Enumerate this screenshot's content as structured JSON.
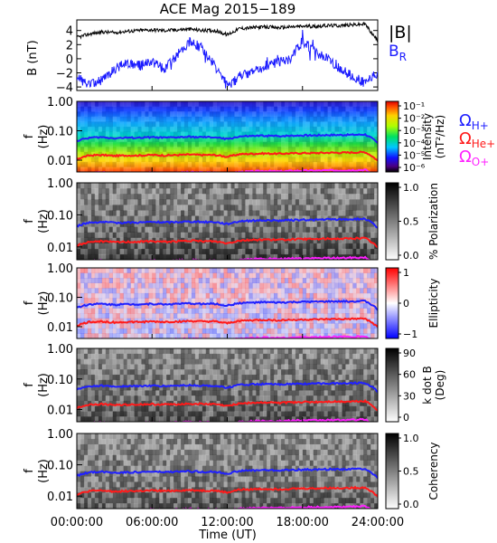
{
  "title": "ACE Mag 2015−189",
  "x_axis": {
    "label": "Time (UT)",
    "ticks": [
      "00:00:00",
      "06:00:00",
      "12:00:00",
      "18:00:00",
      "24:00:00"
    ],
    "range_hours": [
      0,
      24
    ]
  },
  "colors": {
    "B_mag": "#000000",
    "B_R": "#1c1cff",
    "H_plus": "#2020ff",
    "He_plus": "#ff1a1a",
    "O_plus": "#ff22ff"
  },
  "legend": {
    "B_mag": "|B|",
    "B_R_main": "B",
    "B_R_sub": "R",
    "omega": "Ω",
    "H_sub": "H+",
    "He_sub": "He+",
    "O_sub": "O+"
  },
  "freq_axis": {
    "label_main": "f",
    "label_unit": "(Hz)",
    "ticks": [
      "1.00",
      "0.10",
      "0.01"
    ],
    "range_log10": [
      -2.4,
      0
    ]
  },
  "panels": [
    {
      "id": "intensity",
      "colorbar": "rainbow",
      "label_lines": [
        "Intensity",
        "(nT²/Hz)"
      ],
      "ticks": [
        "10⁻¹",
        "10⁻²",
        "10⁻³",
        "10⁻⁴",
        "10⁻⁵",
        "10⁻⁶"
      ]
    },
    {
      "id": "polarization",
      "colorbar": "gray",
      "label_lines": [
        "% Polarization"
      ],
      "ticks": [
        "1.0",
        "0.5",
        "0.0"
      ]
    },
    {
      "id": "ellipticity",
      "colorbar": "redblue",
      "label_lines": [
        "Ellipticity"
      ],
      "ticks": [
        "1",
        "0",
        "−1"
      ]
    },
    {
      "id": "kdotb",
      "colorbar": "gray",
      "label_lines": [
        "k dot B",
        "(Deg)"
      ],
      "ticks": [
        "90",
        "60",
        "30",
        "0"
      ]
    },
    {
      "id": "coherency",
      "colorbar": "gray",
      "label_lines": [
        "Coherency"
      ],
      "ticks": [
        "1.0",
        "0.5",
        "0.0"
      ]
    }
  ],
  "chart_data": [
    {
      "type": "line",
      "title": "ACE Mag 2015−189",
      "xlabel": "Time (UT)",
      "ylabel": "B (nT)",
      "yticks": [
        "4",
        "2",
        "0",
        "−2",
        "−4"
      ],
      "ylim": [
        -4.5,
        5.5
      ],
      "x": [
        0,
        1,
        2,
        3,
        4,
        5,
        6,
        7,
        8,
        9,
        10,
        11,
        12,
        13,
        14,
        15,
        16,
        17,
        18,
        19,
        20,
        21,
        22,
        23,
        24
      ],
      "series": [
        {
          "name": "|B|",
          "values": [
            3.0,
            3.5,
            3.8,
            3.7,
            3.9,
            4.0,
            4.1,
            4.0,
            4.1,
            4.2,
            4.0,
            4.0,
            3.4,
            4.3,
            4.4,
            4.5,
            4.4,
            4.5,
            4.6,
            4.6,
            4.7,
            4.7,
            4.8,
            4.9,
            2.5
          ]
        },
        {
          "name": "B_R",
          "values": [
            -2.5,
            -3.8,
            -3.0,
            -1.5,
            -0.5,
            -1.0,
            -0.5,
            -1.5,
            0.5,
            2.5,
            1.5,
            -1.0,
            -4.0,
            -2.5,
            -2.0,
            -1.0,
            -0.5,
            0.0,
            2.5,
            1.0,
            0.0,
            -1.5,
            -2.5,
            -3.5,
            -2.0
          ]
        }
      ]
    },
    {
      "type": "line",
      "xlabel": "Time (UT)",
      "ylabel": "f (Hz)",
      "yscale": "log",
      "ylim": [
        0.004,
        1.0
      ],
      "x": [
        0,
        1,
        2,
        3,
        4,
        5,
        6,
        7,
        8,
        9,
        10,
        11,
        12,
        13,
        14,
        15,
        16,
        17,
        18,
        19,
        20,
        21,
        22,
        23,
        24
      ],
      "series": [
        {
          "name": "H+",
          "values": [
            0.045,
            0.058,
            0.06,
            0.056,
            0.058,
            0.058,
            0.06,
            0.058,
            0.06,
            0.062,
            0.06,
            0.06,
            0.052,
            0.064,
            0.066,
            0.068,
            0.066,
            0.068,
            0.07,
            0.07,
            0.072,
            0.072,
            0.073,
            0.075,
            0.038
          ]
        },
        {
          "name": "He+",
          "values": [
            0.011,
            0.0145,
            0.015,
            0.014,
            0.0145,
            0.0145,
            0.015,
            0.0145,
            0.015,
            0.0155,
            0.015,
            0.015,
            0.013,
            0.016,
            0.0165,
            0.017,
            0.0165,
            0.017,
            0.0175,
            0.0175,
            0.018,
            0.018,
            0.0183,
            0.0188,
            0.0095
          ]
        },
        {
          "name": "O+",
          "values": [
            0.0028,
            0.0036,
            0.0038,
            0.0035,
            0.0036,
            0.0036,
            0.0038,
            0.0036,
            0.0038,
            0.0039,
            0.0038,
            0.0038,
            0.0033,
            0.004,
            0.0041,
            0.0043,
            0.0041,
            0.0043,
            0.0044,
            0.0044,
            0.0045,
            0.0045,
            0.0046,
            0.0047,
            0.0024
          ]
        }
      ]
    }
  ]
}
